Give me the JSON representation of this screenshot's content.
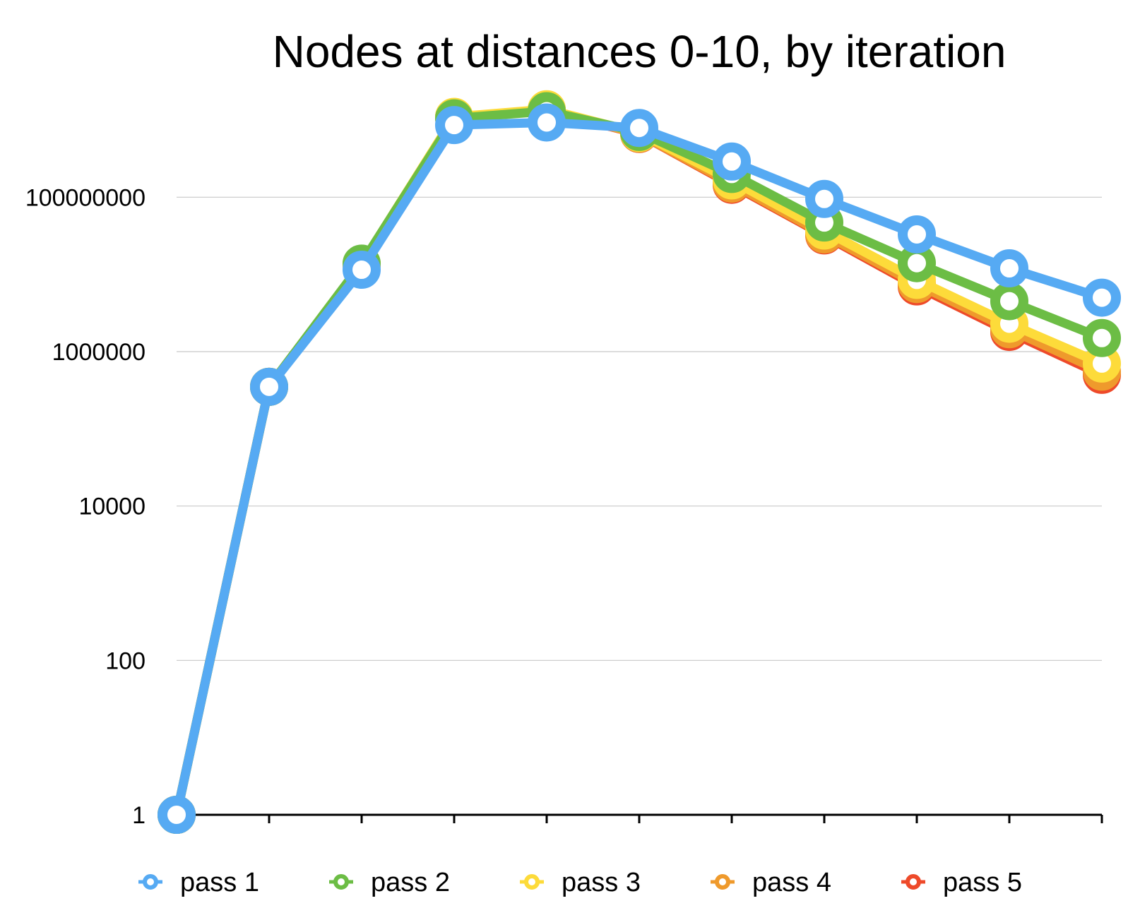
{
  "chart_data": {
    "type": "line",
    "title": "Nodes at distances 0-10, by iteration",
    "xlabel": "",
    "ylabel": "",
    "y_scale": "log",
    "ylim": [
      1,
      1000000000
    ],
    "grid": true,
    "legend_position": "bottom",
    "x": [
      0,
      1,
      2,
      3,
      4,
      5,
      6,
      7,
      8,
      9,
      10
    ],
    "y_ticks": [
      {
        "value": 1,
        "label": "1"
      },
      {
        "value": 100,
        "label": "100"
      },
      {
        "value": 10000,
        "label": "10000"
      },
      {
        "value": 1000000,
        "label": "1000000"
      },
      {
        "value": 100000000,
        "label": "100000000"
      }
    ],
    "series": [
      {
        "name": "pass 5",
        "color": "#ee4a2a",
        "values": [
          1,
          350000,
          13500000,
          1080000000,
          1330000000,
          660000000,
          145000000,
          32000000,
          7000000,
          1800000,
          500000
        ]
      },
      {
        "name": "pass 4",
        "color": "#ef9a2c",
        "values": [
          1,
          350000,
          13500000,
          1090000000,
          1350000000,
          665000000,
          150000000,
          33000000,
          7500000,
          1950000,
          550000
        ]
      },
      {
        "name": "pass 3",
        "color": "#fddb3a",
        "values": [
          1,
          350000,
          13600000,
          1100000000,
          1380000000,
          680000000,
          165000000,
          37000000,
          8500000,
          2300000,
          700000
        ]
      },
      {
        "name": "pass 2",
        "color": "#6cbd45",
        "values": [
          1,
          350000,
          13800000,
          1050000000,
          1300000000,
          700000000,
          200000000,
          47000000,
          14000000,
          4500000,
          1500000
        ]
      },
      {
        "name": "pass 1",
        "color": "#56aaf3",
        "values": [
          1,
          350000,
          11500000,
          860000000,
          930000000,
          790000000,
          290000000,
          95000000,
          33000000,
          12000000,
          5000000
        ]
      }
    ],
    "legend": [
      "pass 1",
      "pass 2",
      "pass 3",
      "pass 4",
      "pass 5"
    ]
  }
}
